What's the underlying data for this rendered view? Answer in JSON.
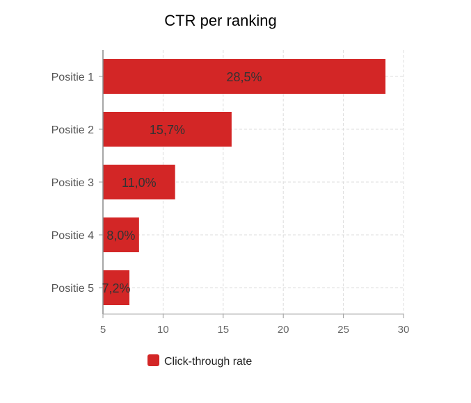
{
  "chart_data": {
    "type": "bar",
    "orientation": "horizontal",
    "title": "CTR per ranking",
    "xlabel": "",
    "ylabel": "",
    "categories": [
      "Positie 1",
      "Positie 2",
      "Positie 3",
      "Positie 4",
      "Positie 5"
    ],
    "series": [
      {
        "name": "Click-through rate",
        "values": [
          28.5,
          15.7,
          11.0,
          8.0,
          7.2
        ],
        "data_labels": [
          "28,5%",
          "15,7%",
          "11,0%",
          "8,0%",
          "7,2%"
        ],
        "color": "#d32626"
      }
    ],
    "xlim": [
      5,
      30
    ],
    "xticks": [
      5,
      10,
      15,
      20,
      25,
      30
    ],
    "grid": true,
    "legend_position": "bottom-left"
  }
}
